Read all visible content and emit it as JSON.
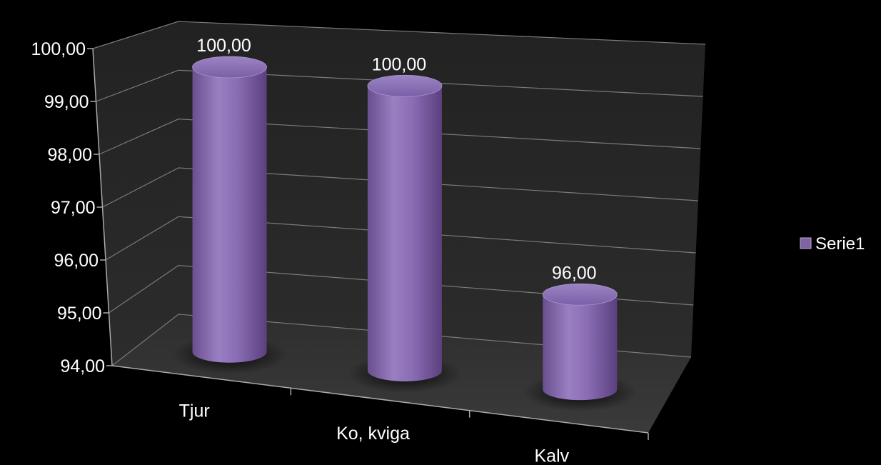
{
  "chart_data": {
    "type": "bar",
    "style": "3d-cylinder",
    "categories": [
      "Tjur",
      "Ko, kviga",
      "Kalv"
    ],
    "series": [
      {
        "name": "Serie1",
        "values": [
          100.0,
          100.0,
          96.0
        ],
        "color": "#8064a2"
      }
    ],
    "data_labels": [
      "100,00",
      "100,00",
      "96,00"
    ],
    "ylim": [
      94,
      100
    ],
    "y_ticks": [
      94,
      95,
      96,
      97,
      98,
      99,
      100
    ],
    "y_tick_labels": [
      "94,00",
      "95,00",
      "96,00",
      "97,00",
      "98,00",
      "99,00",
      "100,00"
    ],
    "grid": true,
    "legend_position": "right",
    "background": "#000000",
    "wall_color": "#1a1a1a",
    "floor_color": "#2a2a2a",
    "text_color": "#ffffff"
  }
}
